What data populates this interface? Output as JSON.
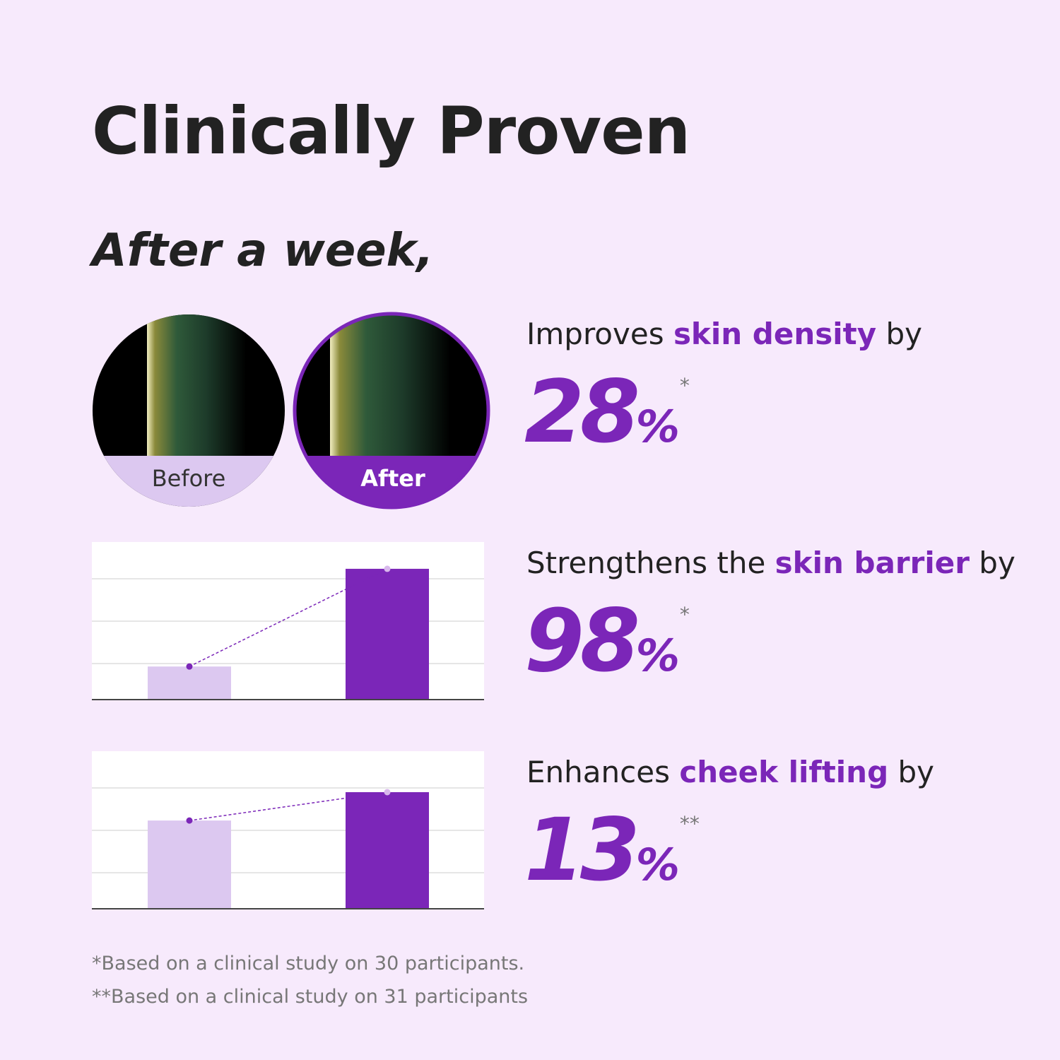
{
  "header": {
    "title": "Clinically Proven",
    "subtitle": "After a week,"
  },
  "images": {
    "before_label": "Before",
    "after_label": "After"
  },
  "stats": [
    {
      "lead": "Improves",
      "highlight": "skin density",
      "tail": "by",
      "value": 28,
      "unit": "%",
      "note": "*"
    },
    {
      "lead": "Strengthens the",
      "highlight": "skin barrier",
      "tail": "by",
      "value": 98,
      "unit": "%",
      "note": "*"
    },
    {
      "lead": "Enhances",
      "highlight": "cheek lifting",
      "tail": "by",
      "value": 13,
      "unit": "%",
      "note": "**"
    }
  ],
  "charts": [
    {
      "type": "bar",
      "values": [
        21,
        83
      ],
      "colors": [
        "#dcc8f0",
        "#7b26b8"
      ],
      "ylim": [
        0,
        100
      ]
    },
    {
      "type": "bar",
      "values": [
        56,
        74
      ],
      "colors": [
        "#dcc8f0",
        "#7b26b8"
      ],
      "ylim": [
        0,
        100
      ]
    }
  ],
  "footnotes": [
    "*Based on a clinical study on 30 participants.",
    "**Based on a clinical study on 31 participants"
  ]
}
